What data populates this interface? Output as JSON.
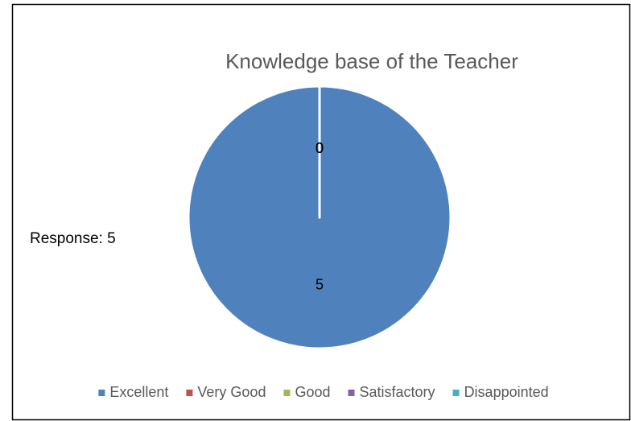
{
  "chart_data": {
    "type": "pie",
    "title": "Knowledge base of the Teacher",
    "annotation": "Response: 5",
    "categories": [
      "Excellent",
      "Very Good",
      "Good",
      "Satisfactory",
      "Disappointed"
    ],
    "values": [
      5,
      0,
      0,
      0,
      0
    ],
    "colors": [
      "#4f81bd",
      "#c0504d",
      "#9bbb59",
      "#8064a2",
      "#4bacc6"
    ],
    "legend": "bottom"
  }
}
